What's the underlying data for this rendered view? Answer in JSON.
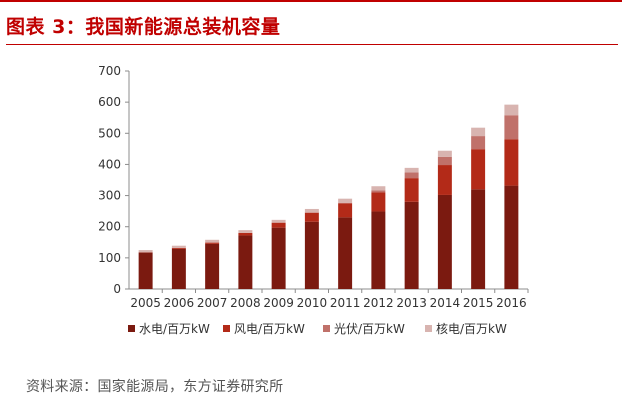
{
  "title": "图表 3：我国新能源总装机容量",
  "source": "资料来源：国家能源局，东方证券研究所",
  "chart_data": {
    "type": "bar",
    "stacked": true,
    "categories": [
      "2005",
      "2006",
      "2007",
      "2008",
      "2009",
      "2010",
      "2011",
      "2012",
      "2013",
      "2014",
      "2015",
      "2016"
    ],
    "ylim": [
      0,
      700
    ],
    "yticks": [
      0,
      100,
      200,
      300,
      400,
      500,
      600,
      700
    ],
    "grid": false,
    "legend_position": "bottom",
    "series": [
      {
        "name": "水电/百万kW",
        "color": "#7b1a10",
        "values": [
          117,
          129,
          145,
          172,
          197,
          216,
          230,
          249,
          280,
          302,
          320,
          332
        ]
      },
      {
        "name": "风电/百万kW",
        "color": "#b32a18",
        "values": [
          1,
          3,
          4,
          8,
          16,
          29,
          45,
          61,
          76,
          96,
          129,
          149
        ]
      },
      {
        "name": "光伏/百万kW",
        "color": "#c0716a",
        "values": [
          0,
          0,
          0,
          0,
          0,
          1,
          2,
          7,
          18,
          26,
          42,
          77
        ]
      },
      {
        "name": "核电/百万kW",
        "color": "#d8b4b0",
        "values": [
          7,
          7,
          9,
          9,
          9,
          11,
          13,
          13,
          15,
          20,
          27,
          34
        ]
      }
    ]
  }
}
